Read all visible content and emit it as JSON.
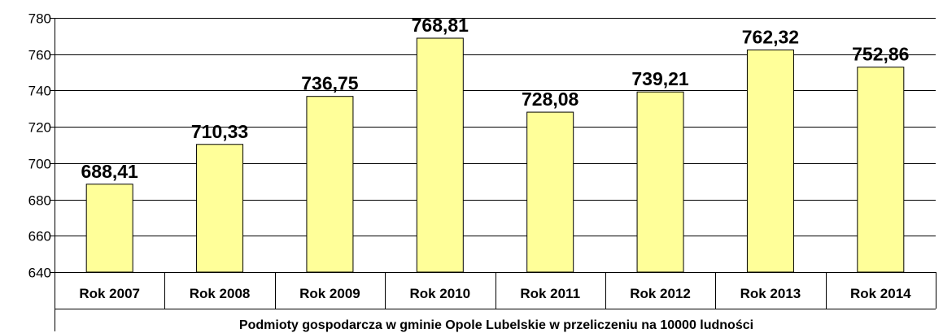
{
  "chart_data": {
    "type": "bar",
    "categories": [
      "Rok 2007",
      "Rok 2008",
      "Rok 2009",
      "Rok 2010",
      "Rok 2011",
      "Rok 2012",
      "Rok 2013",
      "Rok 2014"
    ],
    "values": [
      688.41,
      710.33,
      736.75,
      768.81,
      728.08,
      739.21,
      762.32,
      752.86
    ],
    "value_labels": [
      "688,41",
      "710,33",
      "736,75",
      "768,81",
      "728,08",
      "739,21",
      "762,32",
      "752,86"
    ],
    "title": "",
    "xlabel": "Podmioty gospodarcza w gminie Opole Lubelskie w przeliczeniu na 10000 ludności",
    "ylabel": "",
    "ylim": [
      640,
      780
    ],
    "yticks": [
      640,
      660,
      680,
      700,
      720,
      740,
      760,
      780
    ],
    "grid": "horizontal",
    "legend": "none",
    "colors": {
      "bar_fill": "#FFFF99",
      "bar_stroke": "#000000",
      "grid": "#000000"
    }
  }
}
